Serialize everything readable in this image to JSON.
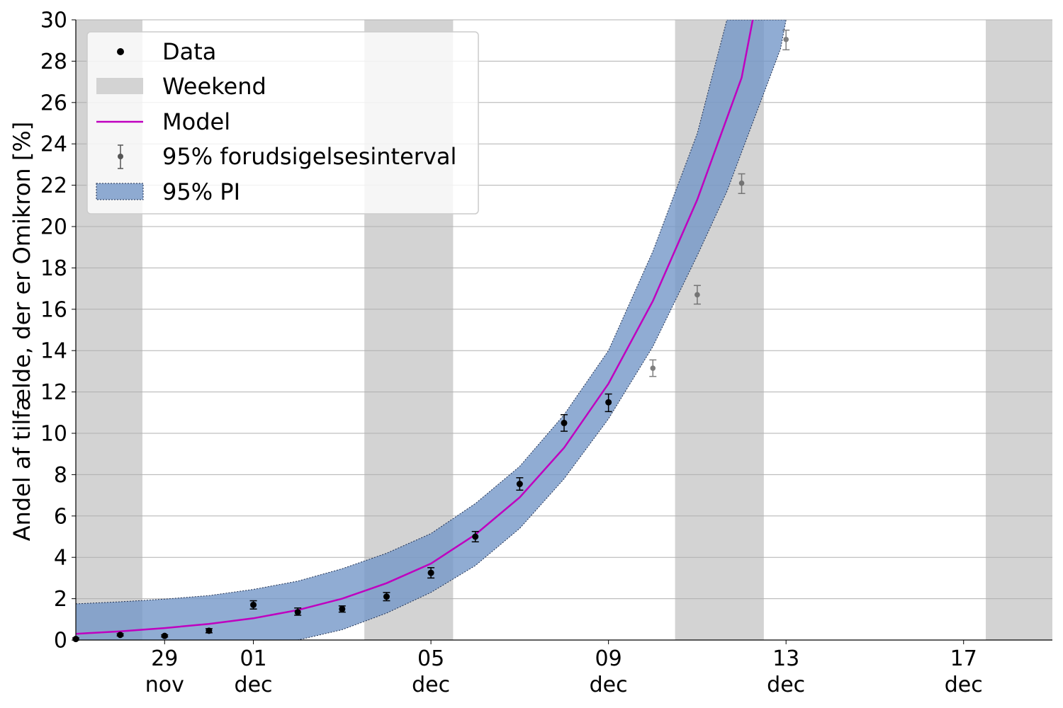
{
  "chart_data": {
    "type": "line",
    "title": "",
    "xlabel": "",
    "ylabel": "Andel af tilfælde, der er Omikron [%]",
    "x_start": "2021-11-27",
    "xlim": [
      "2021-11-27",
      "2021-12-19"
    ],
    "ylim": [
      0,
      30
    ],
    "y_ticks": [
      0,
      2,
      4,
      6,
      8,
      10,
      12,
      14,
      16,
      18,
      20,
      22,
      24,
      26,
      28,
      30
    ],
    "x_ticks": [
      {
        "date": "2021-11-29",
        "day": "29",
        "month": "nov"
      },
      {
        "date": "2021-12-01",
        "day": "01",
        "month": "dec"
      },
      {
        "date": "2021-12-05",
        "day": "05",
        "month": "dec"
      },
      {
        "date": "2021-12-09",
        "day": "09",
        "month": "dec"
      },
      {
        "date": "2021-12-13",
        "day": "13",
        "month": "dec"
      },
      {
        "date": "2021-12-17",
        "day": "17",
        "month": "dec"
      }
    ],
    "grid": "horizontal",
    "legend_position": "top-left",
    "weekends": [
      [
        "2021-11-27",
        "2021-11-28"
      ],
      [
        "2021-12-04",
        "2021-12-05"
      ],
      [
        "2021-12-11",
        "2021-12-12"
      ],
      [
        "2021-12-18",
        "2021-12-19"
      ]
    ],
    "colors": {
      "data": "#000000",
      "weekend": "#d3d3d3",
      "model": "#bf00bf",
      "prediction": "#555555",
      "pi_fill": "#7497c8",
      "pi_edge": "#1f2f50",
      "grid": "#b0b0b0"
    },
    "legend": [
      {
        "key": "data",
        "label": "Data"
      },
      {
        "key": "weekend",
        "label": "Weekend"
      },
      {
        "key": "model",
        "label": "Model"
      },
      {
        "key": "prediction",
        "label": "95% forudsigelsesinterval"
      },
      {
        "key": "pi",
        "label": "95% PI"
      }
    ],
    "series": [
      {
        "name": "Data",
        "kind": "points",
        "x": [
          "2021-11-27",
          "2021-11-28",
          "2021-11-29",
          "2021-11-30",
          "2021-12-01",
          "2021-12-02",
          "2021-12-03",
          "2021-12-04",
          "2021-12-05",
          "2021-12-06",
          "2021-12-07",
          "2021-12-08",
          "2021-12-09"
        ],
        "y": [
          0.05,
          0.25,
          0.2,
          0.45,
          1.7,
          1.35,
          1.5,
          2.1,
          3.25,
          5.0,
          7.55,
          10.5,
          11.5
        ],
        "err_low": [
          0.0,
          0.2,
          0.15,
          0.35,
          1.5,
          1.2,
          1.35,
          1.9,
          3.0,
          4.75,
          7.25,
          10.1,
          11.05
        ],
        "err_high": [
          0.1,
          0.3,
          0.25,
          0.55,
          1.9,
          1.55,
          1.65,
          2.3,
          3.5,
          5.25,
          7.85,
          10.9,
          11.9
        ]
      },
      {
        "name": "95% forudsigelsesinterval",
        "kind": "prediction",
        "x": [
          "2021-12-10",
          "2021-12-11",
          "2021-12-12",
          "2021-12-13"
        ],
        "y": [
          13.15,
          16.7,
          22.1,
          29.05
        ],
        "err_low": [
          12.75,
          16.25,
          21.6,
          28.55
        ],
        "err_high": [
          13.55,
          17.15,
          22.55,
          29.5
        ]
      },
      {
        "name": "Model",
        "kind": "line",
        "x": [
          "2021-11-27",
          "2021-11-28",
          "2021-11-29",
          "2021-11-30",
          "2021-12-01",
          "2021-12-02",
          "2021-12-03",
          "2021-12-04",
          "2021-12-05",
          "2021-12-06",
          "2021-12-07",
          "2021-12-08",
          "2021-12-09",
          "2021-12-10",
          "2021-12-11",
          "2021-12-12",
          "2021-12-12T06:00"
        ],
        "y": [
          0.3,
          0.42,
          0.58,
          0.78,
          1.05,
          1.45,
          2.0,
          2.75,
          3.7,
          5.1,
          6.9,
          9.3,
          12.4,
          16.4,
          21.3,
          27.2,
          30.0
        ]
      },
      {
        "name": "95% PI",
        "kind": "band",
        "x": [
          "2021-11-27",
          "2021-11-28",
          "2021-11-29",
          "2021-11-30",
          "2021-12-01",
          "2021-12-02",
          "2021-12-03",
          "2021-12-04",
          "2021-12-05",
          "2021-12-06",
          "2021-12-07",
          "2021-12-08",
          "2021-12-09",
          "2021-12-10",
          "2021-12-11",
          "2021-12-11T16:00",
          "2021-12-12",
          "2021-12-12T21:00",
          "2021-12-13"
        ],
        "upper": [
          1.75,
          1.85,
          1.98,
          2.15,
          2.45,
          2.85,
          3.45,
          4.2,
          5.15,
          6.6,
          8.4,
          10.9,
          14.0,
          18.8,
          24.5,
          30.0,
          30.0,
          30.0,
          30.0
        ],
        "lower": [
          0.0,
          0.0,
          0.0,
          0.0,
          0.0,
          0.0,
          0.5,
          1.3,
          2.3,
          3.6,
          5.4,
          7.8,
          10.7,
          14.2,
          18.6,
          21.7,
          23.6,
          28.6,
          30.0
        ]
      }
    ]
  }
}
